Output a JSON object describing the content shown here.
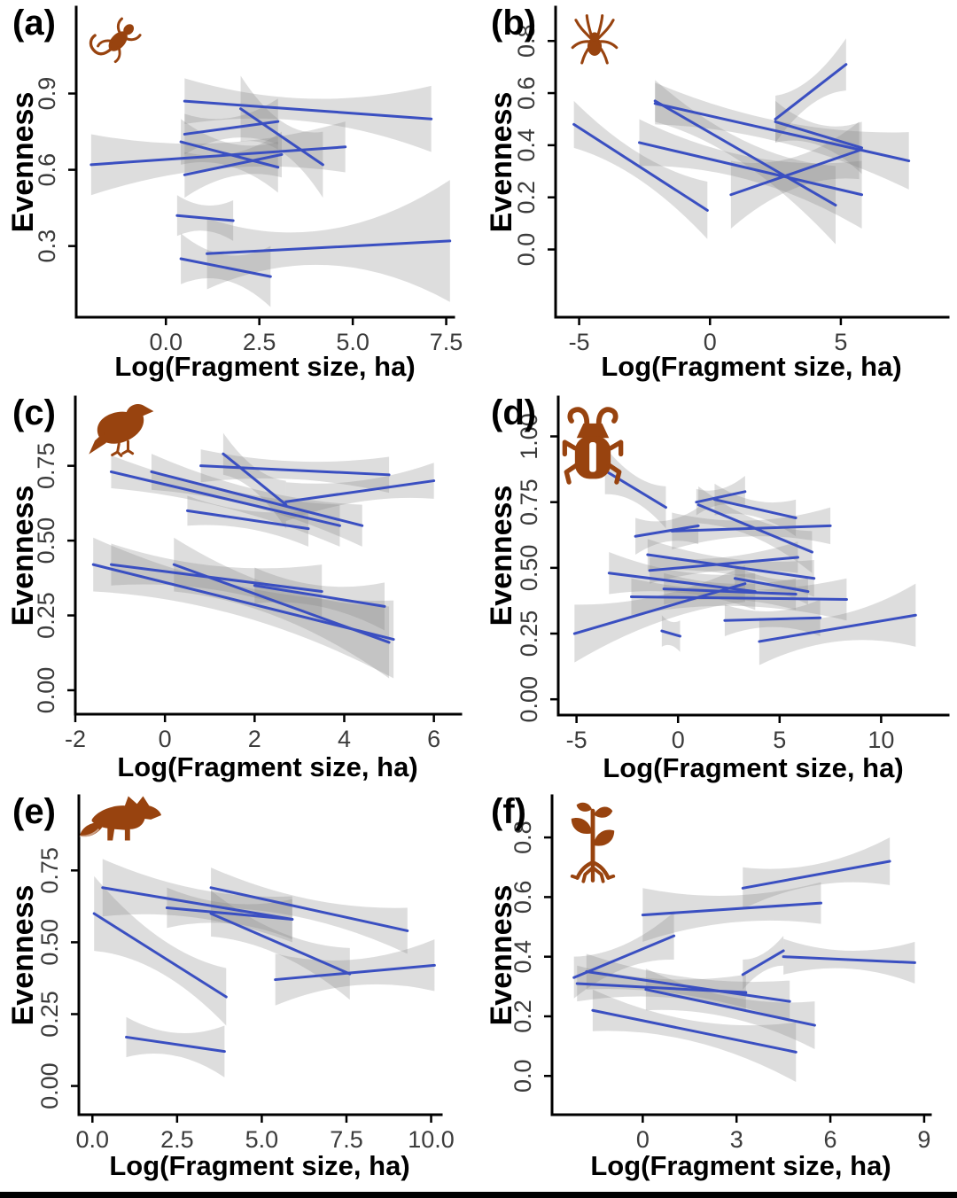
{
  "chart_data": {
    "type": "line",
    "title": "",
    "xlabel": "Log(Fragment size, ha)",
    "ylabel": "Evenness",
    "legend": "none",
    "grid": false,
    "style_note": "blue per-study regression lines with grey confidence bands, classic axes",
    "colors": {
      "line": "#3A4FC1",
      "band": "rgba(128,128,128,0.27)",
      "icon": "#98430F",
      "axis": "#000000",
      "tick_label": "#3C3C3C",
      "footer_bar": "#000000"
    },
    "panels": [
      {
        "label": "(a)",
        "icon": "lizard-icon",
        "xlim": [
          -2.4,
          7.7
        ],
        "ylim": [
          0.02,
          1.24
        ],
        "xticks": {
          "values": [
            0,
            2.5,
            5,
            7.5
          ],
          "labels": [
            "0.0",
            "2.5",
            "5.0",
            "7.5"
          ]
        },
        "yticks": {
          "values": [
            0.3,
            0.6,
            0.9
          ],
          "labels": [
            "0.3",
            "0.6",
            "0.9"
          ]
        },
        "lines": [
          [
            0.5,
            0.87,
            7.1,
            0.8,
            0.09,
            0.045,
            0.13
          ],
          [
            2.0,
            0.84,
            4.2,
            0.62,
            0.13,
            0.06,
            0.13
          ],
          [
            0.5,
            0.74,
            3.0,
            0.79,
            0.08,
            0.04,
            0.09
          ],
          [
            0.4,
            0.71,
            3.0,
            0.61,
            0.09,
            0.045,
            0.1
          ],
          [
            -2.0,
            0.62,
            4.8,
            0.69,
            0.12,
            0.05,
            0.1
          ],
          [
            0.5,
            0.58,
            3.1,
            0.66,
            0.09,
            0.045,
            0.09
          ],
          [
            0.3,
            0.42,
            1.8,
            0.4,
            0.08,
            0.05,
            0.08
          ],
          [
            1.1,
            0.27,
            7.6,
            0.32,
            0.14,
            0.07,
            0.24
          ],
          [
            0.4,
            0.25,
            2.8,
            0.18,
            0.1,
            0.05,
            0.12
          ]
        ]
      },
      {
        "label": "(b)",
        "icon": "spider-icon",
        "xlim": [
          -5.9,
          9.1
        ],
        "ylim": [
          -0.26,
          0.93
        ],
        "xticks": {
          "values": [
            -5,
            0,
            5
          ],
          "labels": [
            "-5",
            "0",
            "5"
          ]
        },
        "yticks": {
          "values": [
            0,
            0.2,
            0.4,
            0.6,
            0.8
          ],
          "labels": [
            "0.0",
            "0.2",
            "0.4",
            "0.6",
            "0.8"
          ]
        },
        "lines": [
          [
            -5.2,
            0.48,
            -0.1,
            0.15,
            0.09,
            0.05,
            0.11
          ],
          [
            -2.7,
            0.41,
            5.8,
            0.21,
            0.09,
            0.045,
            0.13
          ],
          [
            -2.1,
            0.57,
            4.8,
            0.17,
            0.08,
            0.045,
            0.15
          ],
          [
            -2.1,
            0.56,
            7.6,
            0.34,
            0.08,
            0.04,
            0.11
          ],
          [
            2.5,
            0.5,
            5.2,
            0.71,
            0.09,
            0.05,
            0.1
          ],
          [
            2.5,
            0.49,
            5.8,
            0.39,
            0.08,
            0.04,
            0.1
          ],
          [
            0.8,
            0.21,
            5.7,
            0.38,
            0.13,
            0.06,
            0.11
          ]
        ]
      },
      {
        "label": "(c)",
        "icon": "bird-icon",
        "xlim": [
          -2.0,
          6.6
        ],
        "ylim": [
          -0.08,
          0.98
        ],
        "xticks": {
          "values": [
            -2,
            0,
            2,
            4,
            6
          ],
          "labels": [
            "-2",
            "0",
            "2",
            "4",
            "6"
          ]
        },
        "yticks": {
          "values": [
            0,
            0.25,
            0.5,
            0.75
          ],
          "labels": [
            "0.00",
            "0.25",
            "0.50",
            "0.75"
          ]
        },
        "lines": [
          [
            -1.2,
            0.73,
            3.9,
            0.55,
            0.055,
            0.03,
            0.07
          ],
          [
            -0.3,
            0.73,
            4.4,
            0.55,
            0.06,
            0.03,
            0.07
          ],
          [
            0.8,
            0.75,
            5.0,
            0.72,
            0.055,
            0.03,
            0.06
          ],
          [
            1.3,
            0.79,
            2.7,
            0.62,
            0.07,
            0.04,
            0.08
          ],
          [
            2.7,
            0.63,
            6.0,
            0.7,
            0.065,
            0.035,
            0.06
          ],
          [
            0.5,
            0.6,
            3.2,
            0.54,
            0.05,
            0.03,
            0.06
          ],
          [
            -1.6,
            0.42,
            5.1,
            0.17,
            0.09,
            0.05,
            0.13
          ],
          [
            -1.2,
            0.42,
            3.5,
            0.33,
            0.07,
            0.04,
            0.09
          ],
          [
            0.2,
            0.42,
            5.0,
            0.16,
            0.09,
            0.05,
            0.12
          ],
          [
            2.0,
            0.35,
            4.9,
            0.28,
            0.06,
            0.035,
            0.08
          ]
        ]
      },
      {
        "label": "(d)",
        "icon": "beetle-icon",
        "xlim": [
          -5.9,
          13.3
        ],
        "ylim": [
          -0.06,
          1.15
        ],
        "xticks": {
          "values": [
            -5,
            0,
            5,
            10
          ],
          "labels": [
            "-5",
            "0",
            "5",
            "10"
          ]
        },
        "yticks": {
          "values": [
            0,
            0.25,
            0.5,
            0.75,
            1
          ],
          "labels": [
            "0.00",
            "0.25",
            "0.50",
            "0.75",
            "1.00"
          ]
        },
        "lines": [
          [
            -3.6,
            0.87,
            -0.6,
            0.73,
            0.09,
            0.05,
            0.08
          ],
          [
            1.0,
            0.74,
            6.6,
            0.56,
            0.07,
            0.035,
            0.08
          ],
          [
            1.8,
            0.76,
            5.8,
            0.69,
            0.06,
            0.03,
            0.07
          ],
          [
            -2.1,
            0.62,
            1.0,
            0.66,
            0.07,
            0.04,
            0.07
          ],
          [
            -0.3,
            0.64,
            7.5,
            0.66,
            0.07,
            0.03,
            0.07
          ],
          [
            -1.5,
            0.55,
            6.7,
            0.46,
            0.06,
            0.03,
            0.07
          ],
          [
            -3.4,
            0.48,
            3.8,
            0.41,
            0.08,
            0.04,
            0.07
          ],
          [
            -0.7,
            0.42,
            5.8,
            0.4,
            0.06,
            0.03,
            0.06
          ],
          [
            -2.3,
            0.39,
            8.3,
            0.38,
            0.07,
            0.03,
            0.08
          ],
          [
            -5.1,
            0.25,
            3.3,
            0.44,
            0.11,
            0.05,
            0.07
          ],
          [
            -0.8,
            0.26,
            0.1,
            0.24,
            0.06,
            0.045,
            0.06
          ],
          [
            2.3,
            0.3,
            7.0,
            0.31,
            0.06,
            0.03,
            0.07
          ],
          [
            4.0,
            0.22,
            11.7,
            0.32,
            0.09,
            0.05,
            0.12
          ],
          [
            -1.4,
            0.49,
            5.9,
            0.54,
            0.05,
            0.025,
            0.06
          ],
          [
            2.8,
            0.46,
            6.4,
            0.41,
            0.05,
            0.025,
            0.05
          ],
          [
            0.9,
            0.75,
            3.3,
            0.79,
            0.05,
            0.03,
            0.06
          ]
        ]
      },
      {
        "label": "(e)",
        "icon": "fox-icon",
        "xlim": [
          -0.4,
          10.3
        ],
        "ylim": [
          -0.1,
          1.01
        ],
        "xticks": {
          "values": [
            0,
            2.5,
            5,
            7.5,
            10
          ],
          "labels": [
            "0.0",
            "2.5",
            "5.0",
            "7.5",
            "10.0"
          ]
        },
        "yticks": {
          "values": [
            0,
            0.25,
            0.5,
            0.75
          ],
          "labels": [
            "0.00",
            "0.25",
            "0.50",
            "0.75"
          ]
        },
        "lines": [
          [
            0.3,
            0.69,
            5.9,
            0.58,
            0.1,
            0.05,
            0.08
          ],
          [
            0.05,
            0.6,
            3.95,
            0.31,
            0.13,
            0.06,
            0.1
          ],
          [
            3.5,
            0.69,
            9.3,
            0.54,
            0.07,
            0.035,
            0.08
          ],
          [
            2.2,
            0.62,
            5.9,
            0.58,
            0.07,
            0.035,
            0.07
          ],
          [
            3.5,
            0.6,
            7.6,
            0.39,
            0.08,
            0.04,
            0.09
          ],
          [
            5.4,
            0.37,
            10.1,
            0.42,
            0.09,
            0.045,
            0.09
          ],
          [
            1.0,
            0.17,
            3.9,
            0.12,
            0.07,
            0.04,
            0.09
          ]
        ]
      },
      {
        "label": "(f)",
        "icon": "plant-icon",
        "xlim": [
          -2.9,
          9.2
        ],
        "ylim": [
          -0.13,
          0.94
        ],
        "xticks": {
          "values": [
            0,
            3,
            6,
            9
          ],
          "labels": [
            "0",
            "3",
            "6",
            "9"
          ]
        },
        "yticks": {
          "values": [
            0,
            0.2,
            0.4,
            0.6,
            0.8
          ],
          "labels": [
            "0.0",
            "0.2",
            "0.4",
            "0.6",
            "0.8"
          ]
        },
        "lines": [
          [
            0.0,
            0.54,
            5.7,
            0.58,
            0.09,
            0.045,
            0.07
          ],
          [
            3.2,
            0.63,
            7.9,
            0.72,
            0.07,
            0.035,
            0.08
          ],
          [
            -2.2,
            0.33,
            1.0,
            0.47,
            0.07,
            0.04,
            0.08
          ],
          [
            -2.1,
            0.31,
            3.3,
            0.28,
            0.06,
            0.03,
            0.06
          ],
          [
            -1.8,
            0.35,
            4.7,
            0.25,
            0.06,
            0.03,
            0.07
          ],
          [
            0.1,
            0.29,
            5.5,
            0.17,
            0.07,
            0.035,
            0.08
          ],
          [
            -1.6,
            0.22,
            4.9,
            0.08,
            0.07,
            0.035,
            0.1
          ],
          [
            3.2,
            0.34,
            4.5,
            0.42,
            0.05,
            0.03,
            0.05
          ],
          [
            4.5,
            0.4,
            8.7,
            0.38,
            0.06,
            0.03,
            0.07
          ]
        ]
      }
    ]
  }
}
